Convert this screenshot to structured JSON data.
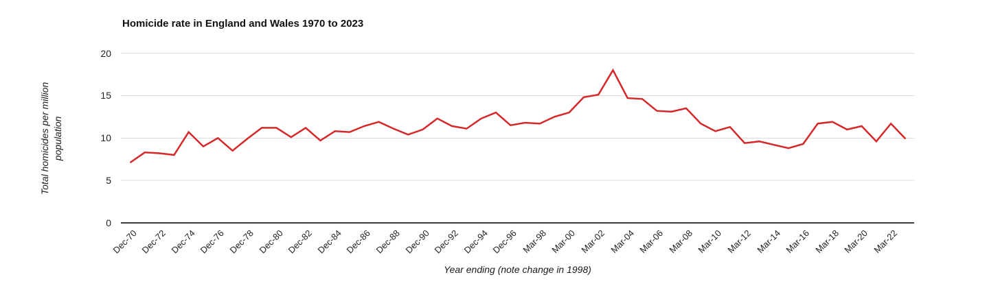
{
  "chart_data": {
    "type": "line",
    "title": "Homicide rate in England and Wales 1970 to 2023",
    "xlabel": "Year ending (note change in 1998)",
    "ylabel": "Total homicides per million population",
    "ylabel_lines": [
      "Total homicides per million",
      "population"
    ],
    "series_name": "Total homicides per million population",
    "x": [
      "Dec-70",
      "Dec-71",
      "Dec-72",
      "Dec-73",
      "Dec-74",
      "Dec-75",
      "Dec-76",
      "Dec-77",
      "Dec-78",
      "Dec-79",
      "Dec-80",
      "Dec-81",
      "Dec-82",
      "Dec-83",
      "Dec-84",
      "Dec-85",
      "Dec-86",
      "Dec-87",
      "Dec-88",
      "Dec-89",
      "Dec-90",
      "Dec-91",
      "Dec-92",
      "Dec-93",
      "Dec-94",
      "Dec-95",
      "Dec-96",
      "Dec-97",
      "Mar-98",
      "Mar-99",
      "Mar-00",
      "Mar-01",
      "Mar-02",
      "Mar-03",
      "Mar-04",
      "Mar-05",
      "Mar-06",
      "Mar-07",
      "Mar-08",
      "Mar-09",
      "Mar-10",
      "Mar-11",
      "Mar-12",
      "Mar-13",
      "Mar-14",
      "Mar-15",
      "Mar-16",
      "Mar-17",
      "Mar-18",
      "Mar-19",
      "Mar-20",
      "Mar-21",
      "Mar-22",
      "Mar-23"
    ],
    "values": [
      7.1,
      8.3,
      8.2,
      8.0,
      10.7,
      9.0,
      10.0,
      8.5,
      9.9,
      11.2,
      11.2,
      10.1,
      11.2,
      9.7,
      10.8,
      10.7,
      11.4,
      11.9,
      11.1,
      10.4,
      11.0,
      12.3,
      11.4,
      11.1,
      12.3,
      13.0,
      11.5,
      11.8,
      11.7,
      12.5,
      13.0,
      14.8,
      15.1,
      18.0,
      14.7,
      14.6,
      13.2,
      13.1,
      13.5,
      11.7,
      10.8,
      11.3,
      9.4,
      9.6,
      9.2,
      8.8,
      9.3,
      11.7,
      11.9,
      11.0,
      11.4,
      9.6,
      11.7,
      9.9
    ],
    "x_tick_labels": [
      "Dec-70",
      "Dec-72",
      "Dec-74",
      "Dec-76",
      "Dec-78",
      "Dec-80",
      "Dec-82",
      "Dec-84",
      "Dec-86",
      "Dec-88",
      "Dec-90",
      "Dec-92",
      "Dec-94",
      "Dec-96",
      "Mar-98",
      "Mar-00",
      "Mar-02",
      "Mar-04",
      "Mar-06",
      "Mar-08",
      "Mar-10",
      "Mar-12",
      "Mar-14",
      "Mar-16",
      "Mar-18",
      "Mar-20",
      "Mar-22"
    ],
    "x_tick_every": 2,
    "y_ticks": [
      0,
      5,
      10,
      15,
      20
    ],
    "ylim": [
      0,
      20
    ],
    "grid": "horizontal",
    "legend_position": "none",
    "line_color": "#d62728",
    "grid_color": "#dcdcdc",
    "axis_color": "#3d3d3d",
    "text_color": "#1f1f1f",
    "background": "#ffffff"
  }
}
